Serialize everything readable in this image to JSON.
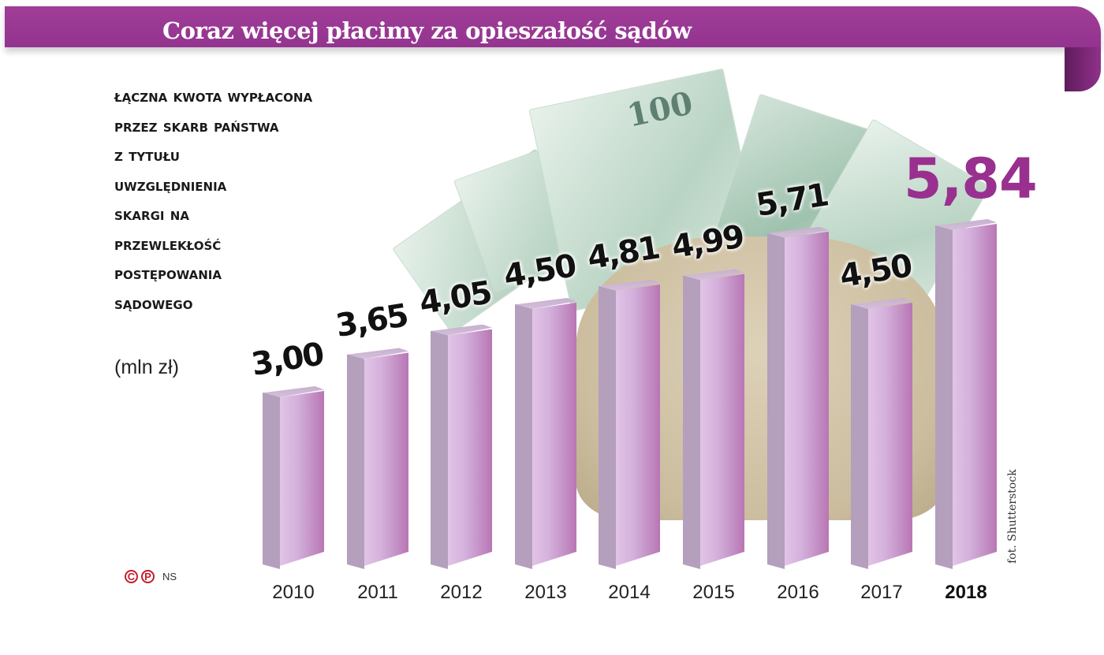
{
  "header": {
    "title": "Coraz więcej płacimy za opieszałość sądów"
  },
  "subtitle_lines": [
    "Łączna kwota wypłacona",
    "przez Skarb Państwa",
    "z tytułu",
    "uwzględnienia",
    "skargi na",
    "przewlekłość",
    "postępowania",
    "sądowego"
  ],
  "unit": "(mln zł)",
  "credit": "fot. Shutterstock",
  "logo": {
    "c": "C",
    "p": "P",
    "author": "NS"
  },
  "colors": {
    "banner": "#993890",
    "highlight": "#99308f",
    "bar_front": "#d3b0db",
    "bar_side": "#b49fbd",
    "copyright_red": "#c41e2c"
  },
  "bars": [
    {
      "year": "2010",
      "label": "3,00"
    },
    {
      "year": "2011",
      "label": "3,65"
    },
    {
      "year": "2012",
      "label": "4,05"
    },
    {
      "year": "2013",
      "label": "4,50"
    },
    {
      "year": "2014",
      "label": "4,81"
    },
    {
      "year": "2015",
      "label": "4,99"
    },
    {
      "year": "2016",
      "label": "5,71"
    },
    {
      "year": "2017",
      "label": "4,50"
    },
    {
      "year": "2018",
      "label": "5,84"
    }
  ],
  "chart_data": {
    "type": "bar",
    "title": "Coraz więcej płacimy za opieszałość sądów",
    "subtitle": "Łączna kwota wypłacona przez Skarb Państwa z tytułu uwzględnienia skargi na przewlekłość postępowania sądowego",
    "categories": [
      "2010",
      "2011",
      "2012",
      "2013",
      "2014",
      "2015",
      "2016",
      "2017",
      "2018"
    ],
    "values": [
      3.0,
      3.65,
      4.05,
      4.5,
      4.81,
      4.99,
      5.71,
      4.5,
      5.84
    ],
    "xlabel": "",
    "ylabel": "mln zł",
    "highlight": "2018",
    "grid": false,
    "legend": null,
    "source": "fot. Shutterstock"
  }
}
